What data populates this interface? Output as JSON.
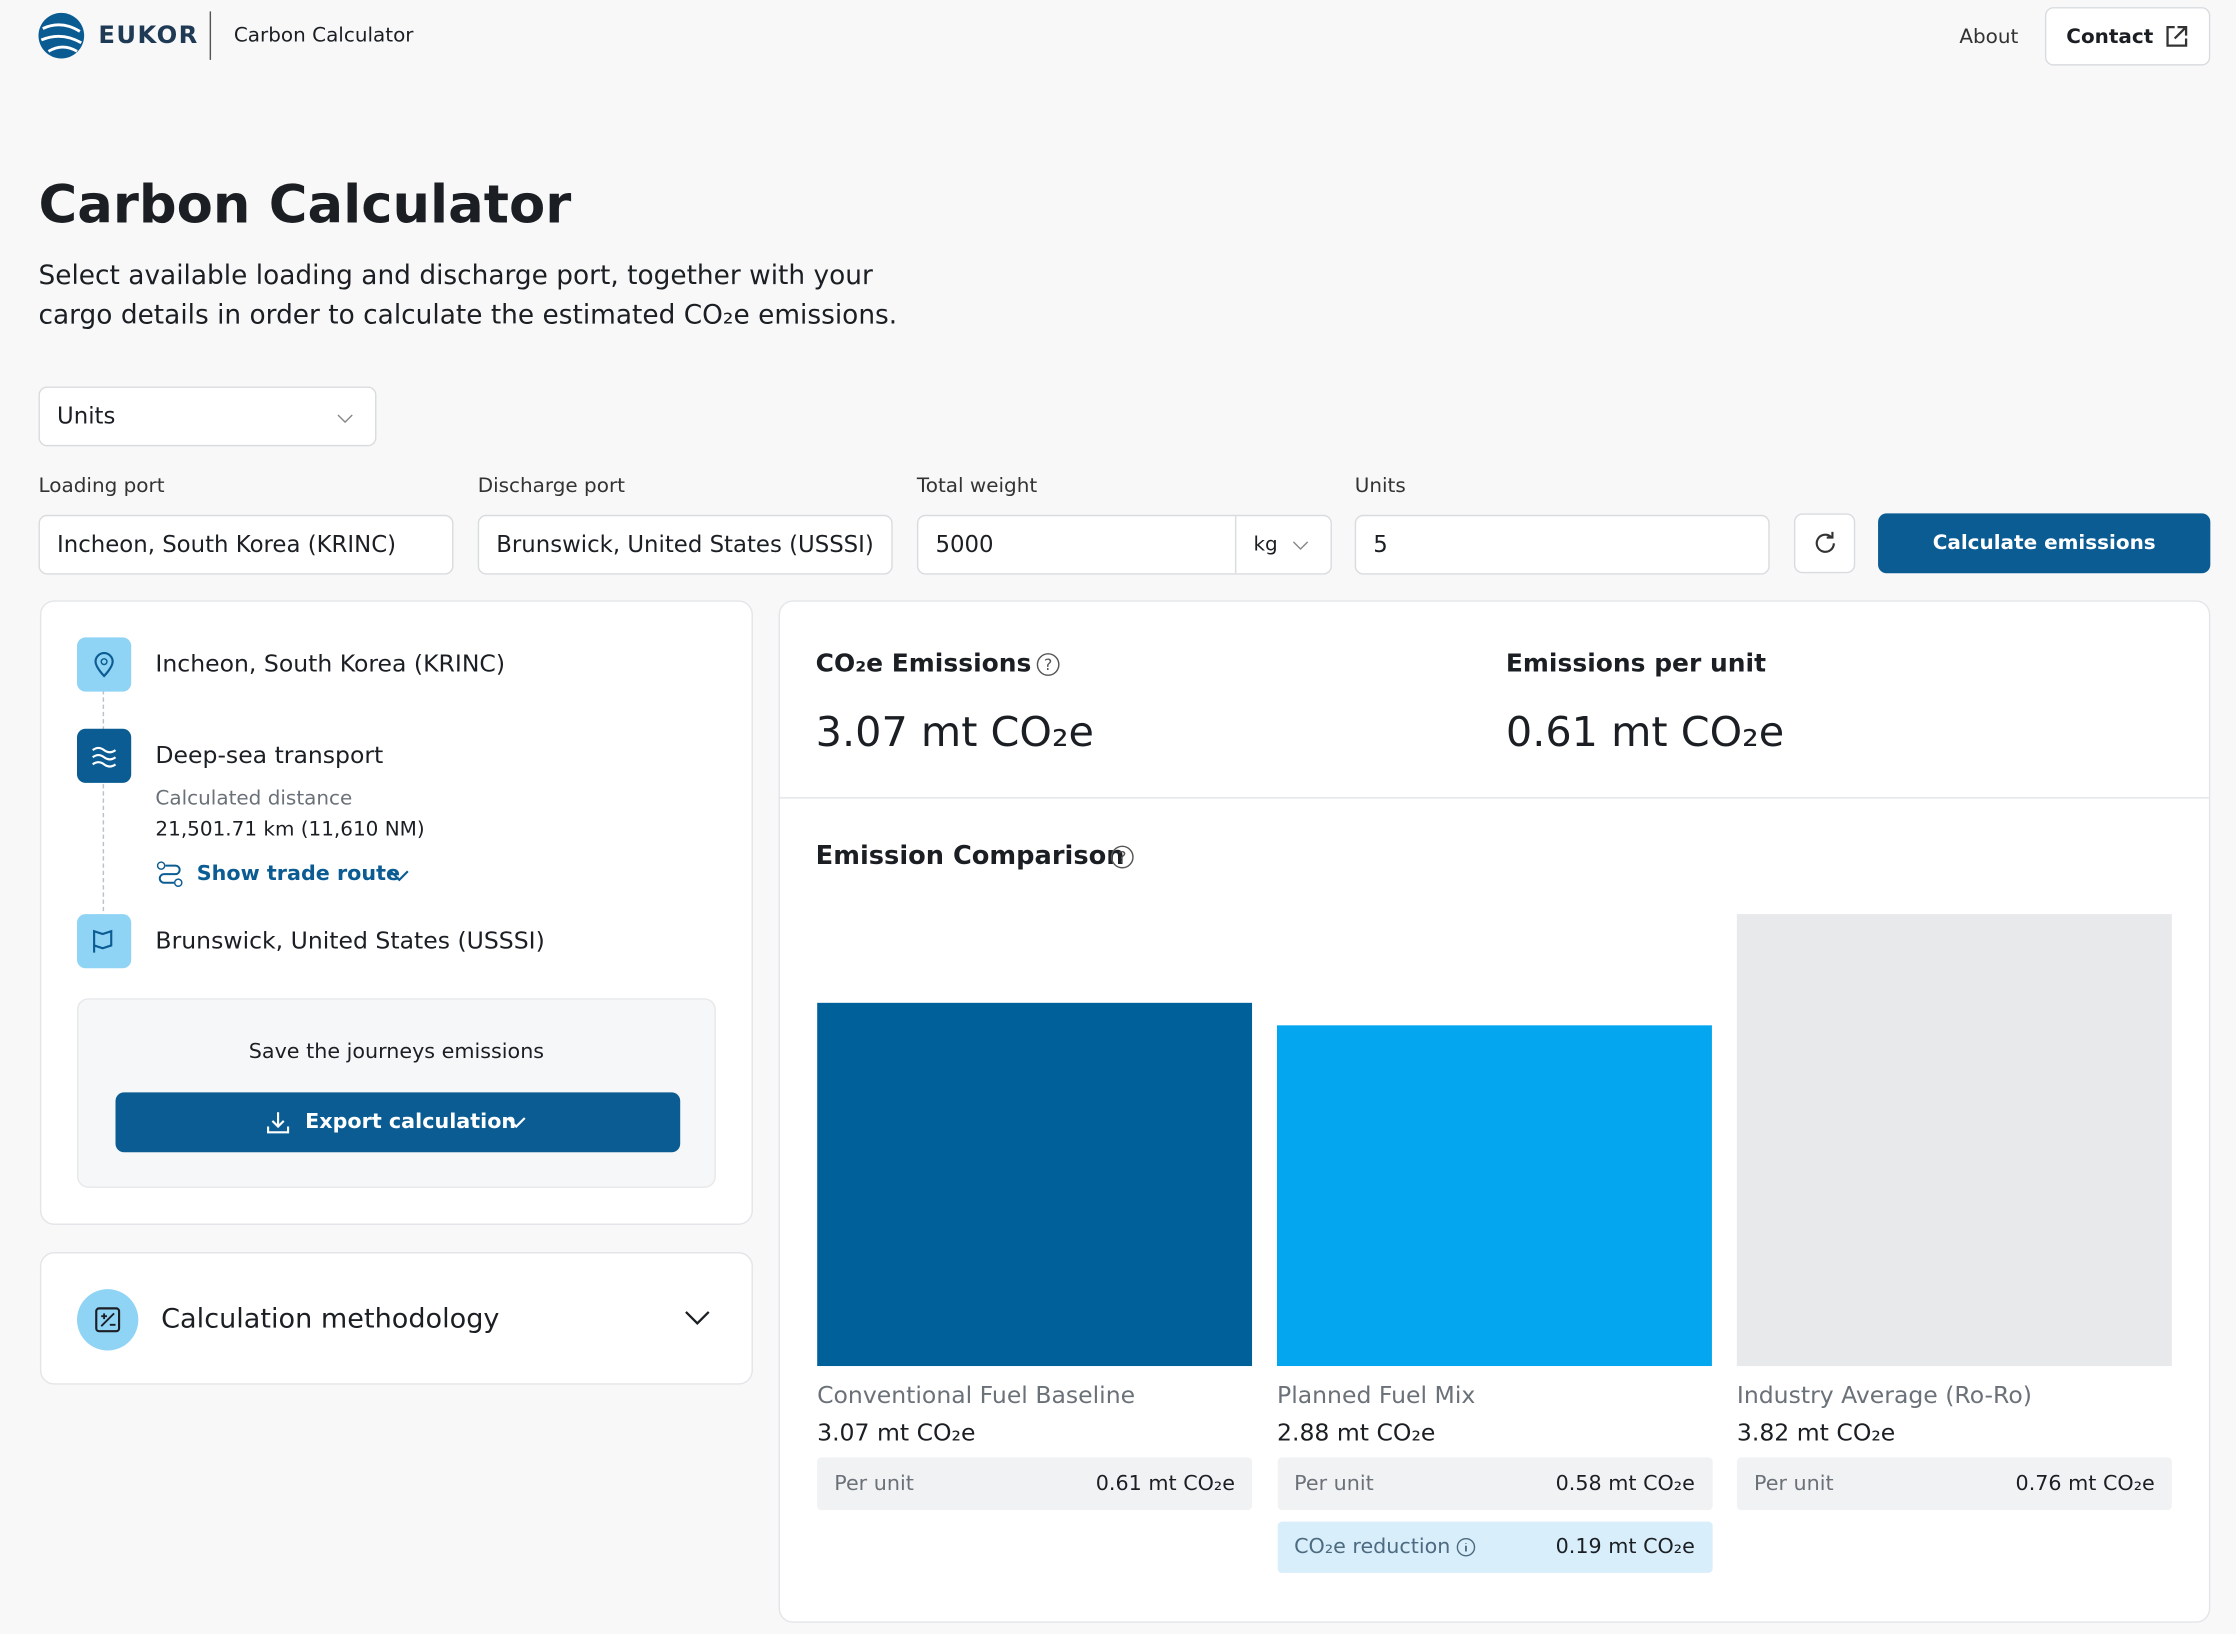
{
  "header": {
    "brand": "EUKOR",
    "app": "Carbon Calculator",
    "nav": [
      "About",
      "Contact"
    ]
  },
  "intro": {
    "title": "Carbon Calculator",
    "description": "Select available loading and discharge port, together with your cargo details in order to calculate the estimated CO₂e emissions."
  },
  "form": {
    "unit_select": "Units",
    "fields": [
      {
        "label": "Loading port",
        "value": "Incheon, South Korea (KRINC)"
      },
      {
        "label": "Discharge port",
        "value": "Brunswick, United States (USSSI)"
      },
      {
        "label": "Total weight",
        "value": "5000",
        "unit": "kg"
      },
      {
        "label": "Units",
        "value": "5"
      }
    ],
    "submit": "Calculate emissions"
  },
  "journey": {
    "origin": "Incheon, South Korea (KRINC)",
    "transport": "Deep-sea transport",
    "distance_label": "Calculated distance",
    "distance": "21,501.71 km (11,610 NM)",
    "route_link": "Show trade route",
    "destination": "Brunswick, United States (USSSI)",
    "save_text": "Save the journeys emissions",
    "export": "Export calculation"
  },
  "methodology": "Calculation methodology",
  "summary": {
    "emissions_label": "CO₂e Emissions",
    "emissions": "3.07 mt CO₂e",
    "per_unit_label": "Emissions per unit",
    "per_unit": "0.61 mt CO₂e"
  },
  "chart_data": {
    "type": "bar",
    "title": "Emission Comparison",
    "categories": [
      "Conventional Fuel Baseline",
      "Planned Fuel Mix",
      "Industry Average (Ro-Ro)"
    ],
    "values": [
      3.07,
      2.88,
      3.82
    ],
    "value_labels": [
      "3.07 mt CO₂e",
      "2.88 mt CO₂e",
      "3.82 mt CO₂e"
    ],
    "colors": [
      "#00609a",
      "#05a6f0",
      "#e8e9eb"
    ],
    "per_unit_label": "Per unit",
    "per_unit": [
      "0.61 mt CO₂e",
      "0.58 mt CO₂e",
      "0.76 mt CO₂e"
    ],
    "reduction_label": "CO₂e reduction",
    "reduction": "0.19 mt CO₂e"
  }
}
